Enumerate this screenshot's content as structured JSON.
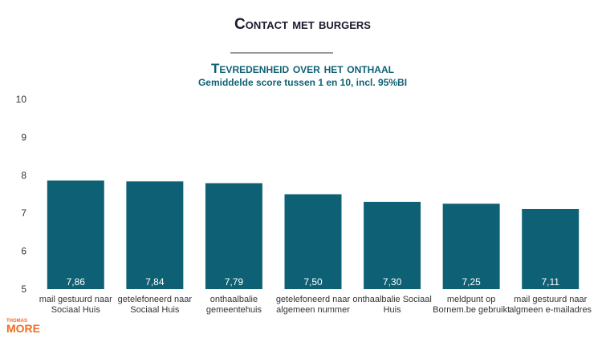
{
  "header": {
    "title": "Contact met burgers"
  },
  "logo": {
    "top": "THOMAS",
    "bottom": "MORE"
  },
  "chart_data": {
    "type": "bar",
    "title": "Tevredenheid over het onthaal",
    "subtitle": "Gemiddelde score tussen 1 en 10, incl. 95%BI",
    "categories": [
      "mail gestuurd naar\nSociaal Huis",
      "getelefoneerd naar\nSociaal Huis",
      "onthaalbalie\ngemeentehuis",
      "getelefoneerd naar\nalgemeen nummer",
      "onthaalbalie Sociaal\nHuis",
      "meldpunt op\nBornem.be gebruikt",
      "mail gestuurd naar\nalgmeen e-mailadres"
    ],
    "values": [
      7.86,
      7.84,
      7.79,
      7.5,
      7.3,
      7.25,
      7.11
    ],
    "value_labels": [
      "7,86",
      "7,84",
      "7,79",
      "7,50",
      "7,30",
      "7,25",
      "7,11"
    ],
    "color": "#0e6174",
    "ylim": [
      5,
      10
    ],
    "yticks": [
      5,
      6,
      7,
      8,
      9,
      10
    ],
    "grid": false
  }
}
